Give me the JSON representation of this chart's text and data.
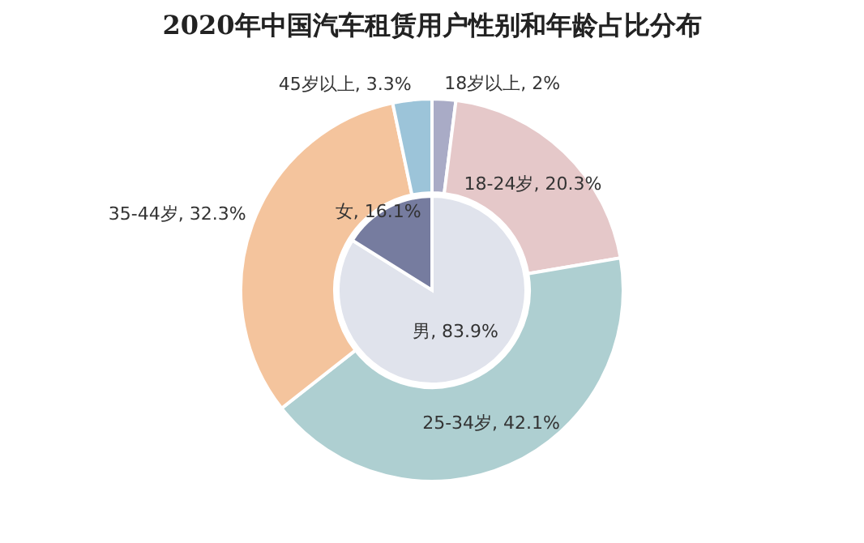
{
  "chart_data": {
    "type": "donut",
    "title": "2020年中国汽车租赁用户性别和年龄占比分布",
    "categories": [
      "男",
      "女",
      "18岁以上",
      "18-24岁",
      "25-34岁",
      "35-44岁",
      "45岁以上"
    ],
    "series": [
      {
        "type": "pie",
        "values": [
          83.9,
          16.1,
          null,
          null,
          null,
          null,
          null
        ],
        "value_labels": [
          ", 83.9%",
          ", 16.1%",
          null,
          null,
          null,
          null,
          null
        ],
        "colors": [
          "#e0e3ec",
          "#767c9f",
          null,
          null,
          null,
          null,
          null
        ]
      },
      {
        "values": [
          null,
          null,
          2,
          20.3,
          42.1,
          32.3,
          3.3
        ],
        "value_labels": [
          null,
          null,
          ", 2%",
          ", 20.3%",
          ", 42.1%",
          ", 32.3%",
          ", 3.3%"
        ],
        "colors": [
          null,
          null,
          "#a9abc6",
          "#e5c8c9",
          "#aecfd1",
          "#f4c49d",
          "#9cc4d9"
        ]
      }
    ]
  }
}
